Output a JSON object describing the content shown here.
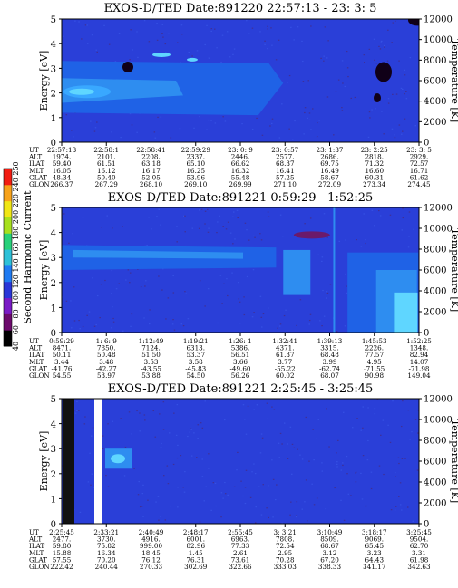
{
  "colors": {
    "background_field": "#2a3fd8",
    "band_light": "#2e8df0",
    "band_mid": "#1f62e6",
    "hot_cyan": "#5fd6ff",
    "hot_blue": "#39a8ff",
    "colorbar": [
      "#000000",
      "#6c0a6c",
      "#7a1bc6",
      "#2a36d8",
      "#1f7bf2",
      "#2ec1d8",
      "#28d17a",
      "#a8e01e",
      "#f0e616",
      "#f7a21a",
      "#f21d12"
    ]
  },
  "colorbar": {
    "label": "Second Harmonic Current",
    "ticks": [
      "40",
      "60",
      "80",
      "100",
      "120",
      "140",
      "160",
      "180",
      "200",
      "220",
      "240",
      "250"
    ]
  },
  "row_labels": [
    "UT",
    "ALT",
    "ILAT",
    "MLT",
    "GLAT",
    "GLON"
  ],
  "chart_data": [
    {
      "type": "heatmap",
      "title": "EXOS-D/TED   Date:891220  22:57:13 - 23: 3: 5",
      "ylabel": "Energy [eV]",
      "y2label": "Temperature [K]",
      "ylim": [
        0,
        5
      ],
      "y_ticks": [
        "0",
        "1",
        "2",
        "3",
        "4",
        "5"
      ],
      "y2lim": [
        0,
        12000
      ],
      "y2_ticks": [
        "0",
        "2000",
        "4000",
        "6000",
        "8000",
        "10000",
        "12000"
      ],
      "orbit_table": [
        [
          "22:57:13",
          "22:58:1",
          "22:58:41",
          "22:59:29",
          "23: 0: 9",
          "23: 0:57",
          "23: 1:37",
          "23: 2:25",
          "23: 3: 5"
        ],
        [
          "1974.",
          "2101.",
          "2208.",
          "2337.",
          "2446.",
          "2577.",
          "2686.",
          "2818.",
          "2929."
        ],
        [
          "59.40",
          "61.51",
          "63.18",
          "65.10",
          "66.62",
          "68.37",
          "69.75",
          "71.32",
          "72.57"
        ],
        [
          "16.05",
          "16.12",
          "16.17",
          "16.25",
          "16.32",
          "16.41",
          "16.49",
          "16.60",
          "16.71"
        ],
        [
          "48.34",
          "50.40",
          "52.05",
          "53.96",
          "55.48",
          "57.25",
          "58.67",
          "60.31",
          "61.62"
        ],
        [
          "266.37",
          "267.29",
          "268.10",
          "269.10",
          "269.99",
          "271.10",
          "272.09",
          "273.34",
          "274.45"
        ]
      ]
    },
    {
      "type": "heatmap",
      "title": "EXOS-D/TED   Date:891221  0:59:29 - 1:52:25",
      "ylabel": "Energy [eV]",
      "y2label": "Temperature [K]",
      "ylim": [
        0,
        5
      ],
      "y_ticks": [
        "0",
        "1",
        "2",
        "3",
        "4",
        "5"
      ],
      "y2lim": [
        0,
        12000
      ],
      "y2_ticks": [
        "0",
        "2000",
        "4000",
        "6000",
        "8000",
        "10000",
        "12000"
      ],
      "orbit_table": [
        [
          "0:59:29",
          "1: 6: 9",
          "1:12:49",
          "1:19:21",
          "1:26: 1",
          "1:32:41",
          "1:39:13",
          "1:45:53",
          "1:52:25"
        ],
        [
          "8471.",
          "7850.",
          "7124.",
          "6313.",
          "5386.",
          "4371.",
          "3315.",
          "2226.",
          "1348."
        ],
        [
          "50.11",
          "50.48",
          "51.50",
          "53.37",
          "56.51",
          "61.37",
          "68.48",
          "77.57",
          "82.94"
        ],
        [
          "3.44",
          "3.48",
          "3.53",
          "3.58",
          "3.66",
          "3.77",
          "3.99",
          "4.95",
          "14.07"
        ],
        [
          "-41.76",
          "-42.27",
          "-43.55",
          "-45.83",
          "-49.60",
          "-55.22",
          "-62.74",
          "-71.55",
          "-71.98"
        ],
        [
          "54.55",
          "53.97",
          "53.88",
          "54.50",
          "56.26",
          "60.02",
          "68.07",
          "90.98",
          "149.04"
        ]
      ]
    },
    {
      "type": "heatmap",
      "title": "EXOS-D/TED   Date:891221  2:25:45 - 3:25:45",
      "ylabel": "Energy [eV]",
      "y2label": "Temperature [K]",
      "ylim": [
        0,
        5
      ],
      "y_ticks": [
        "0",
        "1",
        "2",
        "3",
        "4",
        "5"
      ],
      "y2lim": [
        0,
        12000
      ],
      "y2_ticks": [
        "0",
        "2000",
        "4000",
        "6000",
        "8000",
        "10000",
        "12000"
      ],
      "orbit_table": [
        [
          "2:25:45",
          "2:33:21",
          "2:40:49",
          "2:48:17",
          "2:55:45",
          "3: 3:21",
          "3:10:49",
          "3:18:17",
          "3:25:45"
        ],
        [
          "2477.",
          "3730.",
          "4916.",
          "6001.",
          "6963.",
          "7808.",
          "8509.",
          "9069.",
          "9504."
        ],
        [
          "59.80",
          "75.82",
          "999.00",
          "82.96",
          "77.33",
          "72.54",
          "68.67",
          "65.45",
          "62.70"
        ],
        [
          "15.88",
          "16.34",
          "18.45",
          "1.45",
          "2.61",
          "2.95",
          "3.12",
          "3.23",
          "3.31"
        ],
        [
          "57.55",
          "70.20",
          "76.12",
          "76.31",
          "73.61",
          "70.28",
          "67.20",
          "64.43",
          "61.98"
        ],
        [
          "222.42",
          "240.44",
          "270.33",
          "302.69",
          "322.66",
          "333.03",
          "338.33",
          "341.17",
          "342.63"
        ]
      ]
    }
  ]
}
